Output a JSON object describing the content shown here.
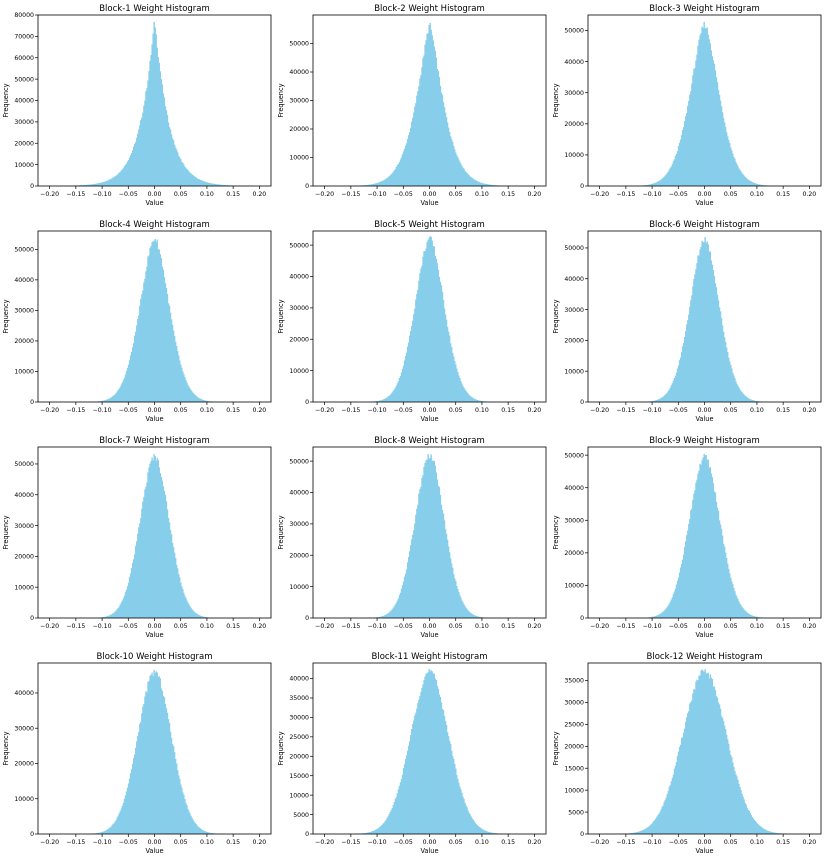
{
  "chart_data": [
    {
      "type": "bar",
      "title": "Block-1 Weight Histogram",
      "xlabel": "Value",
      "ylabel": "Frequency",
      "xlim": [
        -0.2,
        0.2
      ],
      "ylim": [
        0,
        80000
      ],
      "xticks": [
        -0.2,
        -0.15,
        -0.1,
        -0.05,
        0.0,
        0.05,
        0.1,
        0.15,
        0.2
      ],
      "xtick_labels": [
        "−0.20",
        "−0.15",
        "−0.10",
        "−0.05",
        "0.00",
        "0.05",
        "0.10",
        "0.15",
        "0.20"
      ],
      "yticks": [
        0,
        10000,
        20000,
        30000,
        40000,
        50000,
        60000,
        70000,
        80000
      ],
      "ytick_labels": [
        "0",
        "10000",
        "20000",
        "30000",
        "40000",
        "50000",
        "60000",
        "70000",
        "80000"
      ],
      "peak": 77500,
      "mode": 0.0,
      "bar_color": "#87CEEB"
    },
    {
      "type": "bar",
      "title": "Block-2 Weight Histogram",
      "xlabel": "Value",
      "ylabel": "Frequency",
      "xlim": [
        -0.2,
        0.2
      ],
      "ylim": [
        0,
        60000
      ],
      "xticks": [
        -0.2,
        -0.15,
        -0.1,
        -0.05,
        0.0,
        0.05,
        0.1,
        0.15,
        0.2
      ],
      "xtick_labels": [
        "−0.20",
        "−0.15",
        "−0.10",
        "−0.05",
        "0.00",
        "0.05",
        "0.10",
        "0.15",
        "0.20"
      ],
      "yticks": [
        0,
        10000,
        20000,
        30000,
        40000,
        50000
      ],
      "ytick_labels": [
        "0",
        "10000",
        "20000",
        "30000",
        "40000",
        "50000"
      ],
      "peak": 56500,
      "mode": 0.0,
      "bar_color": "#87CEEB"
    },
    {
      "type": "bar",
      "title": "Block-3 Weight Histogram",
      "xlabel": "Value",
      "ylabel": "Frequency",
      "xlim": [
        -0.2,
        0.2
      ],
      "ylim": [
        0,
        55000
      ],
      "xticks": [
        -0.2,
        -0.15,
        -0.1,
        -0.05,
        0.0,
        0.05,
        0.1,
        0.15,
        0.2
      ],
      "xtick_labels": [
        "−0.20",
        "−0.15",
        "−0.10",
        "−0.05",
        "0.00",
        "0.05",
        "0.10",
        "0.15",
        "0.20"
      ],
      "yticks": [
        0,
        10000,
        20000,
        30000,
        40000,
        50000
      ],
      "ytick_labels": [
        "0",
        "10000",
        "20000",
        "30000",
        "40000",
        "50000"
      ],
      "peak": 52000,
      "mode": 0.0,
      "bar_color": "#87CEEB"
    },
    {
      "type": "bar",
      "title": "Block-4 Weight Histogram",
      "xlabel": "Value",
      "ylabel": "Frequency",
      "xlim": [
        -0.2,
        0.2
      ],
      "ylim": [
        0,
        56000
      ],
      "xticks": [
        -0.2,
        -0.15,
        -0.1,
        -0.05,
        0.0,
        0.05,
        0.1,
        0.15,
        0.2
      ],
      "xtick_labels": [
        "−0.20",
        "−0.15",
        "−0.10",
        "−0.05",
        "0.00",
        "0.05",
        "0.10",
        "0.15",
        "0.20"
      ],
      "yticks": [
        0,
        10000,
        20000,
        30000,
        40000,
        50000
      ],
      "ytick_labels": [
        "0",
        "10000",
        "20000",
        "30000",
        "40000",
        "50000"
      ],
      "peak": 53500,
      "mode": 0.0,
      "bar_color": "#87CEEB"
    },
    {
      "type": "bar",
      "title": "Block-5 Weight Histogram",
      "xlabel": "Value",
      "ylabel": "Frequency",
      "xlim": [
        -0.2,
        0.2
      ],
      "ylim": [
        0,
        54500
      ],
      "xticks": [
        -0.2,
        -0.15,
        -0.1,
        -0.05,
        0.0,
        0.05,
        0.1,
        0.15,
        0.2
      ],
      "xtick_labels": [
        "−0.20",
        "−0.15",
        "−0.10",
        "−0.05",
        "0.00",
        "0.05",
        "0.10",
        "0.15",
        "0.20"
      ],
      "yticks": [
        0,
        10000,
        20000,
        30000,
        40000,
        50000
      ],
      "ytick_labels": [
        "0",
        "10000",
        "20000",
        "30000",
        "40000",
        "50000"
      ],
      "peak": 52000,
      "mode": 0.0,
      "bar_color": "#87CEEB"
    },
    {
      "type": "bar",
      "title": "Block-6 Weight Histogram",
      "xlabel": "Value",
      "ylabel": "Frequency",
      "xlim": [
        -0.2,
        0.2
      ],
      "ylim": [
        0,
        55500
      ],
      "xticks": [
        -0.2,
        -0.15,
        -0.1,
        -0.05,
        0.0,
        0.05,
        0.1,
        0.15,
        0.2
      ],
      "xtick_labels": [
        "−0.20",
        "−0.15",
        "−0.10",
        "−0.05",
        "0.00",
        "0.05",
        "0.10",
        "0.15",
        "0.20"
      ],
      "yticks": [
        0,
        10000,
        20000,
        30000,
        40000,
        50000
      ],
      "ytick_labels": [
        "0",
        "10000",
        "20000",
        "30000",
        "40000",
        "50000"
      ],
      "peak": 53000,
      "mode": 0.0,
      "bar_color": "#87CEEB"
    },
    {
      "type": "bar",
      "title": "Block-7 Weight Histogram",
      "xlabel": "Value",
      "ylabel": "Frequency",
      "xlim": [
        -0.2,
        0.2
      ],
      "ylim": [
        0,
        55500
      ],
      "xticks": [
        -0.2,
        -0.15,
        -0.1,
        -0.05,
        0.0,
        0.05,
        0.1,
        0.15,
        0.2
      ],
      "xtick_labels": [
        "−0.20",
        "−0.15",
        "−0.10",
        "−0.05",
        "0.00",
        "0.05",
        "0.10",
        "0.15",
        "0.20"
      ],
      "yticks": [
        0,
        10000,
        20000,
        30000,
        40000,
        50000
      ],
      "ytick_labels": [
        "0",
        "10000",
        "20000",
        "30000",
        "40000",
        "50000"
      ],
      "peak": 52500,
      "mode": 0.0,
      "bar_color": "#87CEEB"
    },
    {
      "type": "bar",
      "title": "Block-8 Weight Histogram",
      "xlabel": "Value",
      "ylabel": "Frequency",
      "xlim": [
        -0.2,
        0.2
      ],
      "ylim": [
        0,
        54500
      ],
      "xticks": [
        -0.2,
        -0.15,
        -0.1,
        -0.05,
        0.0,
        0.05,
        0.1,
        0.15,
        0.2
      ],
      "xtick_labels": [
        "−0.20",
        "−0.15",
        "−0.10",
        "−0.05",
        "0.00",
        "0.05",
        "0.10",
        "0.15",
        "0.20"
      ],
      "yticks": [
        0,
        10000,
        20000,
        30000,
        40000,
        50000
      ],
      "ytick_labels": [
        "0",
        "10000",
        "20000",
        "30000",
        "40000",
        "50000"
      ],
      "peak": 52000,
      "mode": 0.0,
      "bar_color": "#87CEEB"
    },
    {
      "type": "bar",
      "title": "Block-9 Weight Histogram",
      "xlabel": "Value",
      "ylabel": "Frequency",
      "xlim": [
        -0.2,
        0.2
      ],
      "ylim": [
        0,
        52500
      ],
      "xticks": [
        -0.2,
        -0.15,
        -0.1,
        -0.05,
        0.0,
        0.05,
        0.1,
        0.15,
        0.2
      ],
      "xtick_labels": [
        "−0.20",
        "−0.15",
        "−0.10",
        "−0.05",
        "0.00",
        "0.05",
        "0.10",
        "0.15",
        "0.20"
      ],
      "yticks": [
        0,
        10000,
        20000,
        30000,
        40000,
        50000
      ],
      "ytick_labels": [
        "0",
        "10000",
        "20000",
        "30000",
        "40000",
        "50000"
      ],
      "peak": 49500,
      "mode": 0.0,
      "bar_color": "#87CEEB"
    },
    {
      "type": "bar",
      "title": "Block-10 Weight Histogram",
      "xlabel": "Value",
      "ylabel": "Frequency",
      "xlim": [
        -0.2,
        0.2
      ],
      "ylim": [
        0,
        48500
      ],
      "xticks": [
        -0.2,
        -0.15,
        -0.1,
        -0.05,
        0.0,
        0.05,
        0.1,
        0.15,
        0.2
      ],
      "xtick_labels": [
        "−0.20",
        "−0.15",
        "−0.10",
        "−0.05",
        "0.00",
        "0.05",
        "0.10",
        "0.15",
        "0.20"
      ],
      "yticks": [
        0,
        10000,
        20000,
        30000,
        40000
      ],
      "ytick_labels": [
        "0",
        "10000",
        "20000",
        "30000",
        "40000"
      ],
      "peak": 46000,
      "mode": 0.0,
      "bar_color": "#87CEEB"
    },
    {
      "type": "bar",
      "title": "Block-11 Weight Histogram",
      "xlabel": "Value",
      "ylabel": "Frequency",
      "xlim": [
        -0.2,
        0.2
      ],
      "ylim": [
        0,
        44000
      ],
      "xticks": [
        -0.2,
        -0.15,
        -0.1,
        -0.05,
        0.0,
        0.05,
        0.1,
        0.15,
        0.2
      ],
      "xtick_labels": [
        "−0.20",
        "−0.15",
        "−0.10",
        "−0.05",
        "0.00",
        "0.05",
        "0.10",
        "0.15",
        "0.20"
      ],
      "yticks": [
        0,
        5000,
        10000,
        15000,
        20000,
        25000,
        30000,
        35000,
        40000
      ],
      "ytick_labels": [
        "0",
        "5000",
        "10000",
        "15000",
        "20000",
        "25000",
        "30000",
        "35000",
        "40000"
      ],
      "peak": 41800,
      "mode": 0.0,
      "bar_color": "#87CEEB"
    },
    {
      "type": "bar",
      "title": "Block-12 Weight Histogram",
      "xlabel": "Value",
      "ylabel": "Frequency",
      "xlim": [
        -0.2,
        0.2
      ],
      "ylim": [
        0,
        39000
      ],
      "xticks": [
        -0.2,
        -0.15,
        -0.1,
        -0.05,
        0.0,
        0.05,
        0.1,
        0.15,
        0.2
      ],
      "xtick_labels": [
        "−0.20",
        "−0.15",
        "−0.10",
        "−0.05",
        "0.00",
        "0.05",
        "0.10",
        "0.15",
        "0.20"
      ],
      "yticks": [
        0,
        5000,
        10000,
        15000,
        20000,
        25000,
        30000,
        35000
      ],
      "ytick_labels": [
        "0",
        "5000",
        "10000",
        "15000",
        "20000",
        "25000",
        "30000",
        "35000"
      ],
      "peak": 37000,
      "mode": 0.0,
      "bar_color": "#87CEEB"
    }
  ]
}
